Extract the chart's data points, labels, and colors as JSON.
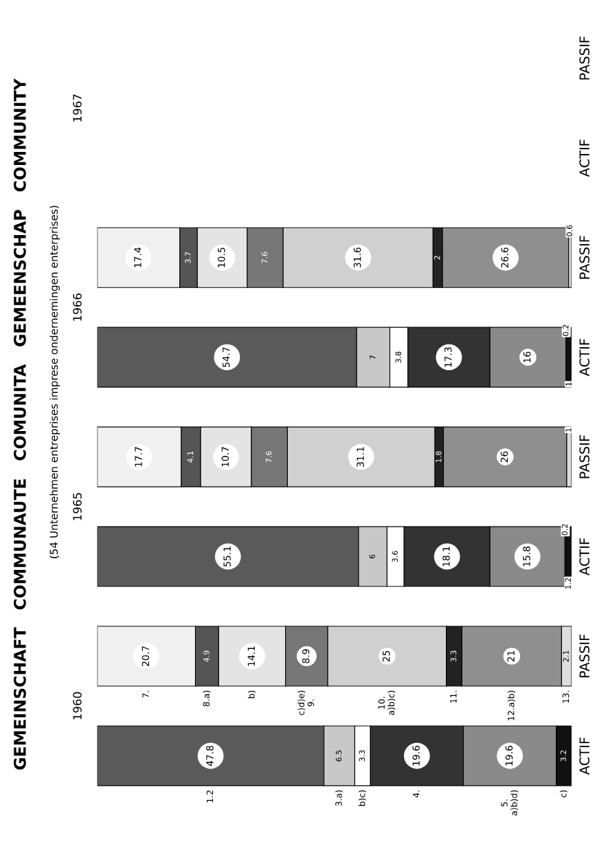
{
  "chart_data": {
    "type": "bar",
    "orientation": "horizontal",
    "stacked": true,
    "title": "GEMEINSCHAFT   COMMUNAUTE   COMUNITA   GEMEENSCHAP   COMMUNITY",
    "subtitle": "(54 Unternehmen entreprises imprese ondernemingen enterprises)",
    "annotations": [
      "1967",
      "1966",
      "1965",
      "1960"
    ],
    "categories": [
      "PASSIF",
      "ACTIF",
      "PASSIF",
      "ACTIF",
      "PASSIF",
      "ACTIF",
      "PASSIF",
      "ACTIF"
    ],
    "xlim": [
      0,
      100
    ],
    "tick_labels": "y",
    "data_labels": true,
    "legend": false,
    "grid": false,
    "series": [
      {
        "name": "1.2",
        "color": "#5a5a5a",
        "values": [
          null,
          null,
          null,
          54.7,
          null,
          55.1,
          null,
          47.8
        ]
      },
      {
        "name": "3.a)",
        "color": "#c8c8c8",
        "values": [
          null,
          null,
          null,
          7,
          null,
          6,
          null,
          6.5
        ]
      },
      {
        "name": "b)c)",
        "color": "#ffffff",
        "values": [
          null,
          null,
          null,
          3.8,
          null,
          3.6,
          null,
          3.3
        ]
      },
      {
        "name": "4.",
        "color": "#333333",
        "values": [
          null,
          null,
          null,
          17.3,
          null,
          18.1,
          null,
          19.6
        ]
      },
      {
        "name": "5.\na)b)d)",
        "color": "#8a8a8a",
        "values": [
          null,
          null,
          null,
          16,
          null,
          15.8,
          null,
          19.6
        ]
      },
      {
        "color": "#bbbbbb",
        "values": [
          null,
          null,
          null,
          0.2,
          null,
          0.2,
          null,
          null
        ]
      },
      {
        "name": "c)",
        "color": "#111111",
        "values": [
          null,
          null,
          null,
          1,
          null,
          1.2,
          null,
          3.2
        ]
      },
      {
        "name": "7.",
        "color": "#f0f0f0",
        "values": [
          null,
          null,
          17.4,
          null,
          17.7,
          null,
          20.7,
          null
        ]
      },
      {
        "name": "8.a)",
        "color": "#555555",
        "values": [
          null,
          null,
          3.7,
          null,
          4.1,
          null,
          4.9,
          null
        ]
      },
      {
        "name": "b)",
        "color": "#e4e4e4",
        "values": [
          null,
          null,
          10.5,
          null,
          10.7,
          null,
          14.1,
          null
        ]
      },
      {
        "name": "c)d)e)\n9.",
        "color": "#777777",
        "values": [
          null,
          null,
          7.6,
          null,
          7.6,
          null,
          8.9,
          null
        ]
      },
      {
        "name": "10.\na)b)c)",
        "color": "#d0d0d0",
        "values": [
          null,
          null,
          31.6,
          null,
          31.1,
          null,
          25,
          null
        ]
      },
      {
        "name": "11.",
        "color": "#222222",
        "values": [
          null,
          null,
          2,
          null,
          1.8,
          null,
          3.3,
          null
        ]
      },
      {
        "name": "12.a)b)",
        "color": "#8f8f8f",
        "values": [
          null,
          null,
          26.6,
          null,
          26,
          null,
          21,
          null
        ]
      },
      {
        "name": "13.",
        "color": "#dddddd",
        "values": [
          null,
          null,
          0.6,
          null,
          1,
          null,
          2.1,
          null
        ]
      }
    ]
  }
}
